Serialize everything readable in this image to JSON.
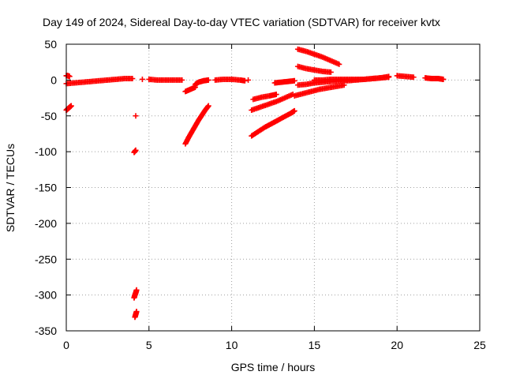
{
  "chart_data": {
    "type": "scatter",
    "title": "Day 149 of 2024, Sidereal Day-to-day VTEC variation (SDTVAR) for receiver kvtx",
    "xlabel": "GPS time / hours",
    "ylabel": "SDTVAR / TECUs",
    "xlim": [
      0,
      25
    ],
    "ylim": [
      -350,
      50
    ],
    "x_ticks": [
      0,
      5,
      10,
      15,
      20,
      25
    ],
    "x_tick_labels": [
      "0",
      "5",
      "10",
      "15",
      "20",
      "25"
    ],
    "y_ticks": [
      50,
      0,
      -50,
      -100,
      -150,
      -200,
      -250,
      -300,
      -350
    ],
    "y_tick_labels": [
      "50",
      "0",
      "-50",
      "-100",
      "-150",
      "-200",
      "-250",
      "-300",
      "-350"
    ],
    "grid": true,
    "marker": "+",
    "series_color": "#ff0000",
    "series": [
      {
        "name": "segment-01",
        "x": [
          0.0,
          0.1,
          0.2
        ],
        "y": [
          6,
          6,
          5
        ]
      },
      {
        "name": "segment-02",
        "x": [
          0.0,
          0.5,
          1.0,
          1.5,
          2.0,
          2.5,
          3.0,
          3.5,
          4.0
        ],
        "y": [
          -5,
          -4,
          -3,
          -2,
          -1,
          0,
          1,
          2,
          2
        ]
      },
      {
        "name": "segment-03",
        "x": [
          0.0,
          0.1,
          0.2,
          0.3
        ],
        "y": [
          -42,
          -40,
          -38,
          -36
        ]
      },
      {
        "name": "segment-04",
        "x": [
          4.2
        ],
        "y": [
          -50
        ]
      },
      {
        "name": "segment-05",
        "x": [
          4.1,
          4.2
        ],
        "y": [
          -101,
          -98
        ]
      },
      {
        "name": "segment-06",
        "x": [
          4.1,
          4.15,
          4.2,
          4.25
        ],
        "y": [
          -304,
          -300,
          -297,
          -293
        ]
      },
      {
        "name": "segment-07",
        "x": [
          4.15,
          4.2,
          4.25
        ],
        "y": [
          -331,
          -327,
          -323
        ]
      },
      {
        "name": "segment-08",
        "x": [
          4.6
        ],
        "y": [
          1
        ]
      },
      {
        "name": "segment-09",
        "x": [
          5.0,
          5.5,
          6.0,
          6.5,
          7.0
        ],
        "y": [
          1,
          0,
          0,
          0,
          0
        ]
      },
      {
        "name": "segment-10",
        "x": [
          7.2,
          7.5,
          7.8
        ],
        "y": [
          -16,
          -13,
          -10
        ]
      },
      {
        "name": "segment-11",
        "x": [
          7.2,
          7.4,
          7.6,
          7.8,
          8.0,
          8.2,
          8.4,
          8.6
        ],
        "y": [
          -89,
          -80,
          -72,
          -64,
          -56,
          -49,
          -42,
          -36
        ]
      },
      {
        "name": "segment-12",
        "x": [
          7.8,
          8.0,
          8.3,
          8.6
        ],
        "y": [
          -6,
          -3,
          -1,
          0
        ]
      },
      {
        "name": "segment-13",
        "x": [
          9.0,
          9.5,
          10.0,
          10.5,
          10.8
        ],
        "y": [
          0,
          1,
          1,
          0,
          -1
        ]
      },
      {
        "name": "segment-14",
        "x": [
          11.0
        ],
        "y": [
          0
        ]
      },
      {
        "name": "segment-15",
        "x": [
          11.3,
          11.8,
          12.3,
          12.7
        ],
        "y": [
          -27,
          -24,
          -22,
          -20
        ]
      },
      {
        "name": "segment-16",
        "x": [
          11.2,
          11.7,
          12.2,
          12.7,
          13.2,
          13.7
        ],
        "y": [
          -42,
          -38,
          -34,
          -30,
          -25,
          -20
        ]
      },
      {
        "name": "segment-17",
        "x": [
          11.2,
          11.6,
          12.0,
          12.4,
          12.8,
          13.2,
          13.6,
          13.8
        ],
        "y": [
          -78,
          -72,
          -66,
          -61,
          -56,
          -51,
          -46,
          -43
        ]
      },
      {
        "name": "segment-18",
        "x": [
          12.6,
          13.0,
          13.4,
          13.8
        ],
        "y": [
          -4,
          -3,
          -2,
          -1
        ]
      },
      {
        "name": "segment-19",
        "x": [
          14.0,
          14.5,
          15.0,
          15.5,
          16.0,
          16.5
        ],
        "y": [
          43,
          40,
          36,
          32,
          27,
          22
        ]
      },
      {
        "name": "segment-20",
        "x": [
          14.0,
          14.5,
          15.0,
          15.5,
          16.0
        ],
        "y": [
          19,
          16,
          14,
          12,
          11
        ]
      },
      {
        "name": "segment-21",
        "x": [
          14.0,
          14.5,
          15.0,
          15.5,
          16.0,
          16.5,
          17.0,
          17.5,
          18.0,
          18.5,
          19.0,
          19.5
        ],
        "y": [
          -7,
          -6,
          -4,
          -3,
          -2,
          -1,
          -1,
          0,
          1,
          2,
          3,
          5
        ]
      },
      {
        "name": "segment-22",
        "x": [
          13.8,
          14.3,
          14.8,
          15.3,
          15.8,
          16.3,
          16.8
        ],
        "y": [
          -22,
          -19,
          -16,
          -13,
          -11,
          -9,
          -7
        ]
      },
      {
        "name": "segment-23",
        "x": [
          15.0,
          15.5,
          16.0,
          16.5,
          17.0,
          17.5,
          18.0,
          18.5,
          19.0,
          19.5
        ],
        "y": [
          0,
          0,
          1,
          1,
          1,
          1,
          1,
          2,
          3,
          4
        ]
      },
      {
        "name": "segment-24",
        "x": [
          20.0,
          20.5,
          21.0
        ],
        "y": [
          6,
          5,
          4
        ]
      },
      {
        "name": "segment-25",
        "x": [
          21.7,
          22.1,
          22.5,
          22.8
        ],
        "y": [
          3,
          2,
          2,
          1
        ]
      }
    ]
  }
}
